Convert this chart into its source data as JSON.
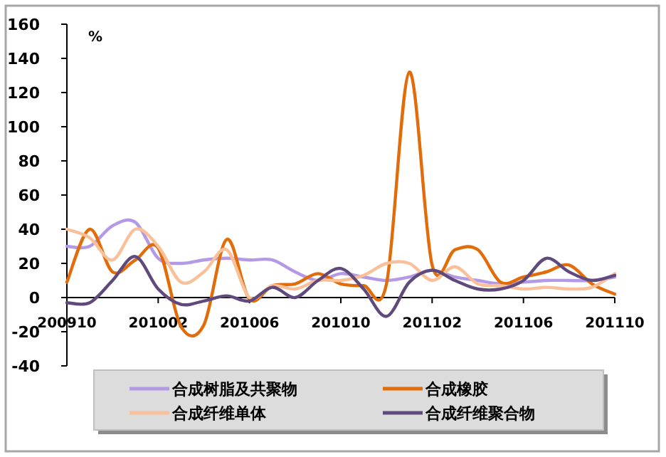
{
  "chart_data": {
    "type": "line",
    "ylabel": "%",
    "ylim": [
      -40,
      160
    ],
    "yticks": [
      -40,
      -20,
      0,
      20,
      40,
      60,
      80,
      100,
      120,
      140,
      160
    ],
    "categories": [
      "200910",
      null,
      null,
      null,
      "201002",
      null,
      null,
      null,
      "201006",
      null,
      null,
      null,
      "201010",
      null,
      null,
      null,
      "201102",
      null,
      null,
      null,
      "201106",
      null,
      null,
      null,
      "201110"
    ],
    "series": [
      {
        "name": "合成树脂及共聚物",
        "color": "#b399e6",
        "values": [
          30,
          30,
          42,
          44,
          23,
          20,
          22,
          23,
          22,
          22,
          15,
          10,
          14,
          12,
          10,
          12,
          16,
          12,
          10,
          8,
          9,
          10,
          10,
          10,
          12
        ]
      },
      {
        "name": "合成橡胶",
        "color": "#e36c0a",
        "values": [
          9,
          40,
          15,
          22,
          29,
          -17,
          -16,
          34,
          -1,
          7,
          8,
          14,
          8,
          7,
          8,
          132,
          19,
          28,
          28,
          9,
          12,
          15,
          19,
          8,
          2
        ]
      },
      {
        "name": "合成纤维单体",
        "color": "#f9c09a",
        "values": [
          40,
          35,
          22,
          40,
          30,
          9,
          15,
          28,
          0,
          7,
          5,
          10,
          10,
          13,
          20,
          20,
          10,
          18,
          8,
          7,
          5,
          6,
          5,
          6,
          14
        ]
      },
      {
        "name": "合成纤维聚合物",
        "color": "#604a7b",
        "values": [
          -3,
          -3,
          10,
          24,
          5,
          -4,
          -2,
          1,
          -2,
          6,
          0,
          10,
          17,
          5,
          -11,
          9,
          16,
          10,
          5,
          5,
          10,
          23,
          15,
          10,
          13
        ]
      }
    ],
    "legend": "bottom",
    "grid": false,
    "marker": "none",
    "line_style": "solid"
  }
}
